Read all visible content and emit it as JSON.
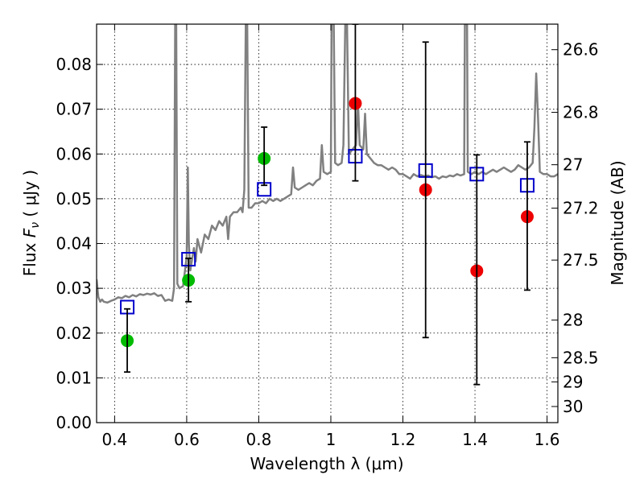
{
  "chart_data": {
    "type": "scatter",
    "xlabel": "Wavelength  λ (μm)",
    "ylabel": "Flux  Fν  ( μJy )",
    "ylabel_right": "Magnitude (AB)",
    "xlim": [
      0.35,
      1.63
    ],
    "ylim": [
      0.0,
      0.089
    ],
    "grid": true,
    "x_ticks": [
      0.4,
      0.6,
      0.8,
      1.0,
      1.2,
      1.4,
      1.6
    ],
    "x_tick_labels": [
      "0.4",
      "0.6",
      "0.8",
      "1",
      "1.2",
      "1.4",
      "1.6"
    ],
    "y_ticks": [
      0.0,
      0.01,
      0.02,
      0.03,
      0.04,
      0.05,
      0.06,
      0.07,
      0.08
    ],
    "y_tick_labels": [
      "0.00",
      "0.01",
      "0.02",
      "0.03",
      "0.04",
      "0.05",
      "0.06",
      "0.07",
      "0.08"
    ],
    "right_ticks": [
      {
        "flux": 0.0833,
        "label": "26.6"
      },
      {
        "flux": 0.0693,
        "label": "26.8"
      },
      {
        "flux": 0.0576,
        "label": "27"
      },
      {
        "flux": 0.0479,
        "label": "27.2"
      },
      {
        "flux": 0.0363,
        "label": "27.5"
      },
      {
        "flux": 0.0229,
        "label": "28"
      },
      {
        "flux": 0.0145,
        "label": "28.5"
      },
      {
        "flux": 0.0091,
        "label": "29"
      },
      {
        "flux": 0.0036,
        "label": "30"
      }
    ],
    "series": [
      {
        "kind": "line",
        "color": "#808080",
        "points": [
          [
            0.35,
            0.032
          ],
          [
            0.355,
            0.028
          ],
          [
            0.36,
            0.027
          ],
          [
            0.365,
            0.0275
          ],
          [
            0.37,
            0.027
          ],
          [
            0.38,
            0.0268
          ],
          [
            0.39,
            0.0272
          ],
          [
            0.4,
            0.0275
          ],
          [
            0.41,
            0.028
          ],
          [
            0.42,
            0.0278
          ],
          [
            0.43,
            0.0283
          ],
          [
            0.44,
            0.028
          ],
          [
            0.45,
            0.0285
          ],
          [
            0.46,
            0.0282
          ],
          [
            0.47,
            0.0287
          ],
          [
            0.48,
            0.0285
          ],
          [
            0.49,
            0.0288
          ],
          [
            0.5,
            0.0286
          ],
          [
            0.51,
            0.0289
          ],
          [
            0.52,
            0.0283
          ],
          [
            0.53,
            0.0285
          ],
          [
            0.54,
            0.0272
          ],
          [
            0.55,
            0.0275
          ],
          [
            0.56,
            0.0272
          ],
          [
            0.565,
            0.03
          ],
          [
            0.568,
            0.089
          ],
          [
            0.571,
            0.089
          ],
          [
            0.574,
            0.031
          ],
          [
            0.58,
            0.03
          ],
          [
            0.59,
            0.0305
          ],
          [
            0.6,
            0.037
          ],
          [
            0.603,
            0.057
          ],
          [
            0.606,
            0.04
          ],
          [
            0.61,
            0.034
          ],
          [
            0.62,
            0.039
          ],
          [
            0.625,
            0.036
          ],
          [
            0.63,
            0.041
          ],
          [
            0.64,
            0.038
          ],
          [
            0.65,
            0.042
          ],
          [
            0.66,
            0.041
          ],
          [
            0.67,
            0.044
          ],
          [
            0.68,
            0.043
          ],
          [
            0.69,
            0.045
          ],
          [
            0.7,
            0.044
          ],
          [
            0.71,
            0.046
          ],
          [
            0.715,
            0.041
          ],
          [
            0.72,
            0.046
          ],
          [
            0.73,
            0.047
          ],
          [
            0.74,
            0.047
          ],
          [
            0.75,
            0.048
          ],
          [
            0.755,
            0.047
          ],
          [
            0.76,
            0.052
          ],
          [
            0.764,
            0.089
          ],
          [
            0.768,
            0.089
          ],
          [
            0.772,
            0.048
          ],
          [
            0.78,
            0.048
          ],
          [
            0.79,
            0.049
          ],
          [
            0.8,
            0.049
          ],
          [
            0.81,
            0.0495
          ],
          [
            0.82,
            0.049
          ],
          [
            0.83,
            0.05
          ],
          [
            0.84,
            0.0495
          ],
          [
            0.85,
            0.05
          ],
          [
            0.86,
            0.0495
          ],
          [
            0.87,
            0.05
          ],
          [
            0.88,
            0.0505
          ],
          [
            0.89,
            0.051
          ],
          [
            0.895,
            0.057
          ],
          [
            0.9,
            0.0525
          ],
          [
            0.91,
            0.052
          ],
          [
            0.92,
            0.0525
          ],
          [
            0.93,
            0.053
          ],
          [
            0.94,
            0.0535
          ],
          [
            0.95,
            0.053
          ],
          [
            0.96,
            0.054
          ],
          [
            0.97,
            0.0545
          ],
          [
            0.975,
            0.062
          ],
          [
            0.98,
            0.056
          ],
          [
            0.99,
            0.0555
          ],
          [
            1.0,
            0.056
          ],
          [
            1.002,
            0.089
          ],
          [
            1.008,
            0.089
          ],
          [
            1.012,
            0.058
          ],
          [
            1.02,
            0.0575
          ],
          [
            1.03,
            0.058
          ],
          [
            1.035,
            0.062
          ],
          [
            1.04,
            0.089
          ],
          [
            1.045,
            0.089
          ],
          [
            1.05,
            0.06
          ],
          [
            1.06,
            0.061
          ],
          [
            1.07,
            0.062
          ],
          [
            1.075,
            0.072
          ],
          [
            1.08,
            0.062
          ],
          [
            1.09,
            0.061
          ],
          [
            1.095,
            0.069
          ],
          [
            1.1,
            0.06
          ],
          [
            1.11,
            0.059
          ],
          [
            1.12,
            0.058
          ],
          [
            1.13,
            0.0575
          ],
          [
            1.14,
            0.0575
          ],
          [
            1.15,
            0.057
          ],
          [
            1.16,
            0.0565
          ],
          [
            1.17,
            0.057
          ],
          [
            1.18,
            0.0565
          ],
          [
            1.19,
            0.0555
          ],
          [
            1.2,
            0.0555
          ],
          [
            1.21,
            0.055
          ],
          [
            1.22,
            0.0545
          ],
          [
            1.23,
            0.0555
          ],
          [
            1.24,
            0.055
          ],
          [
            1.25,
            0.0553
          ],
          [
            1.26,
            0.055
          ],
          [
            1.27,
            0.0552
          ],
          [
            1.28,
            0.0548
          ],
          [
            1.29,
            0.055
          ],
          [
            1.3,
            0.0545
          ],
          [
            1.31,
            0.055
          ],
          [
            1.32,
            0.0548
          ],
          [
            1.33,
            0.0552
          ],
          [
            1.34,
            0.055
          ],
          [
            1.35,
            0.0555
          ],
          [
            1.36,
            0.0552
          ],
          [
            1.37,
            0.0555
          ],
          [
            1.372,
            0.089
          ],
          [
            1.378,
            0.089
          ],
          [
            1.38,
            0.056
          ],
          [
            1.39,
            0.0555
          ],
          [
            1.4,
            0.056
          ],
          [
            1.41,
            0.0555
          ],
          [
            1.42,
            0.056
          ],
          [
            1.43,
            0.0555
          ],
          [
            1.44,
            0.056
          ],
          [
            1.45,
            0.0565
          ],
          [
            1.46,
            0.056
          ],
          [
            1.47,
            0.0565
          ],
          [
            1.48,
            0.057
          ],
          [
            1.49,
            0.0565
          ],
          [
            1.5,
            0.056
          ],
          [
            1.51,
            0.0565
          ],
          [
            1.52,
            0.0575
          ],
          [
            1.53,
            0.057
          ],
          [
            1.54,
            0.0565
          ],
          [
            1.55,
            0.057
          ],
          [
            1.56,
            0.058
          ],
          [
            1.565,
            0.066
          ],
          [
            1.57,
            0.078
          ],
          [
            1.575,
            0.068
          ],
          [
            1.58,
            0.056
          ],
          [
            1.59,
            0.0555
          ],
          [
            1.6,
            0.0555
          ],
          [
            1.61,
            0.055
          ],
          [
            1.62,
            0.055
          ],
          [
            1.63,
            0.0555
          ]
        ]
      },
      {
        "kind": "markers",
        "marker": "circle",
        "color": "#00bb00",
        "points": [
          [
            0.435,
            0.0183
          ],
          [
            0.605,
            0.0318
          ],
          [
            0.815,
            0.059
          ]
        ]
      },
      {
        "kind": "markers",
        "marker": "circle",
        "color": "#ee0000",
        "points": [
          [
            1.068,
            0.0713
          ],
          [
            1.263,
            0.052
          ],
          [
            1.405,
            0.0339
          ],
          [
            1.545,
            0.046
          ]
        ]
      },
      {
        "kind": "markers",
        "marker": "open-square",
        "color": "#0000cc",
        "points": [
          [
            0.435,
            0.0258
          ],
          [
            0.605,
            0.0365
          ],
          [
            0.815,
            0.0521
          ],
          [
            1.068,
            0.0595
          ],
          [
            1.263,
            0.0563
          ],
          [
            1.405,
            0.0555
          ],
          [
            1.545,
            0.053
          ]
        ]
      },
      {
        "kind": "errorbars",
        "color": "#000000",
        "bars": [
          {
            "x": 0.435,
            "low": 0.0113,
            "high": 0.0254
          },
          {
            "x": 0.605,
            "low": 0.027,
            "high": 0.0367
          },
          {
            "x": 0.815,
            "low": 0.053,
            "high": 0.066
          },
          {
            "x": 1.068,
            "low": 0.054,
            "high": 0.089
          },
          {
            "x": 1.263,
            "low": 0.019,
            "high": 0.085
          },
          {
            "x": 1.405,
            "low": 0.0085,
            "high": 0.0598
          },
          {
            "x": 1.545,
            "low": 0.0296,
            "high": 0.0627
          }
        ]
      }
    ]
  }
}
